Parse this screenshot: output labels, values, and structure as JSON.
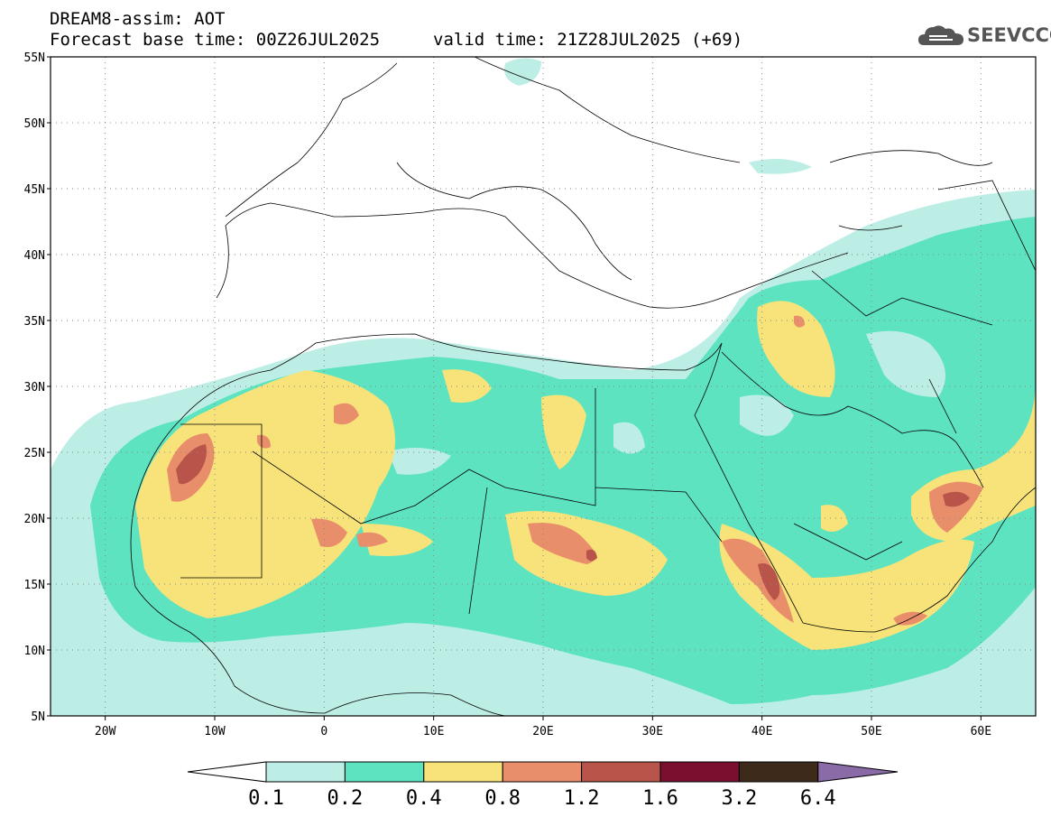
{
  "header": {
    "title_line1": "DREAM8-assim: AOT",
    "title_line2": "Forecast base time: 00Z26JUL2025",
    "valid_time": "valid time: 21Z28JUL2025 (+69)",
    "logo_text": "SEEVCCC"
  },
  "map": {
    "lat_labels": [
      "55N",
      "50N",
      "45N",
      "40N",
      "35N",
      "30N",
      "25N",
      "20N",
      "15N",
      "10N",
      "5N"
    ],
    "lon_labels": [
      "20W",
      "10W",
      "0",
      "10E",
      "20E",
      "30E",
      "40E",
      "50E",
      "60E"
    ],
    "lat_range": [
      5,
      55
    ],
    "lon_range": [
      -25,
      65
    ],
    "grid": "dotted"
  },
  "colorbar": {
    "levels": [
      "0.1",
      "0.2",
      "0.4",
      "0.8",
      "1.2",
      "1.6",
      "3.2",
      "6.4"
    ],
    "colors": [
      "#ffffff",
      "#bdeee6",
      "#5de3c0",
      "#f7e37a",
      "#e98e6b",
      "#b8544a",
      "#7a0f2f",
      "#3d2a1a",
      "#8b6aa8"
    ]
  }
}
